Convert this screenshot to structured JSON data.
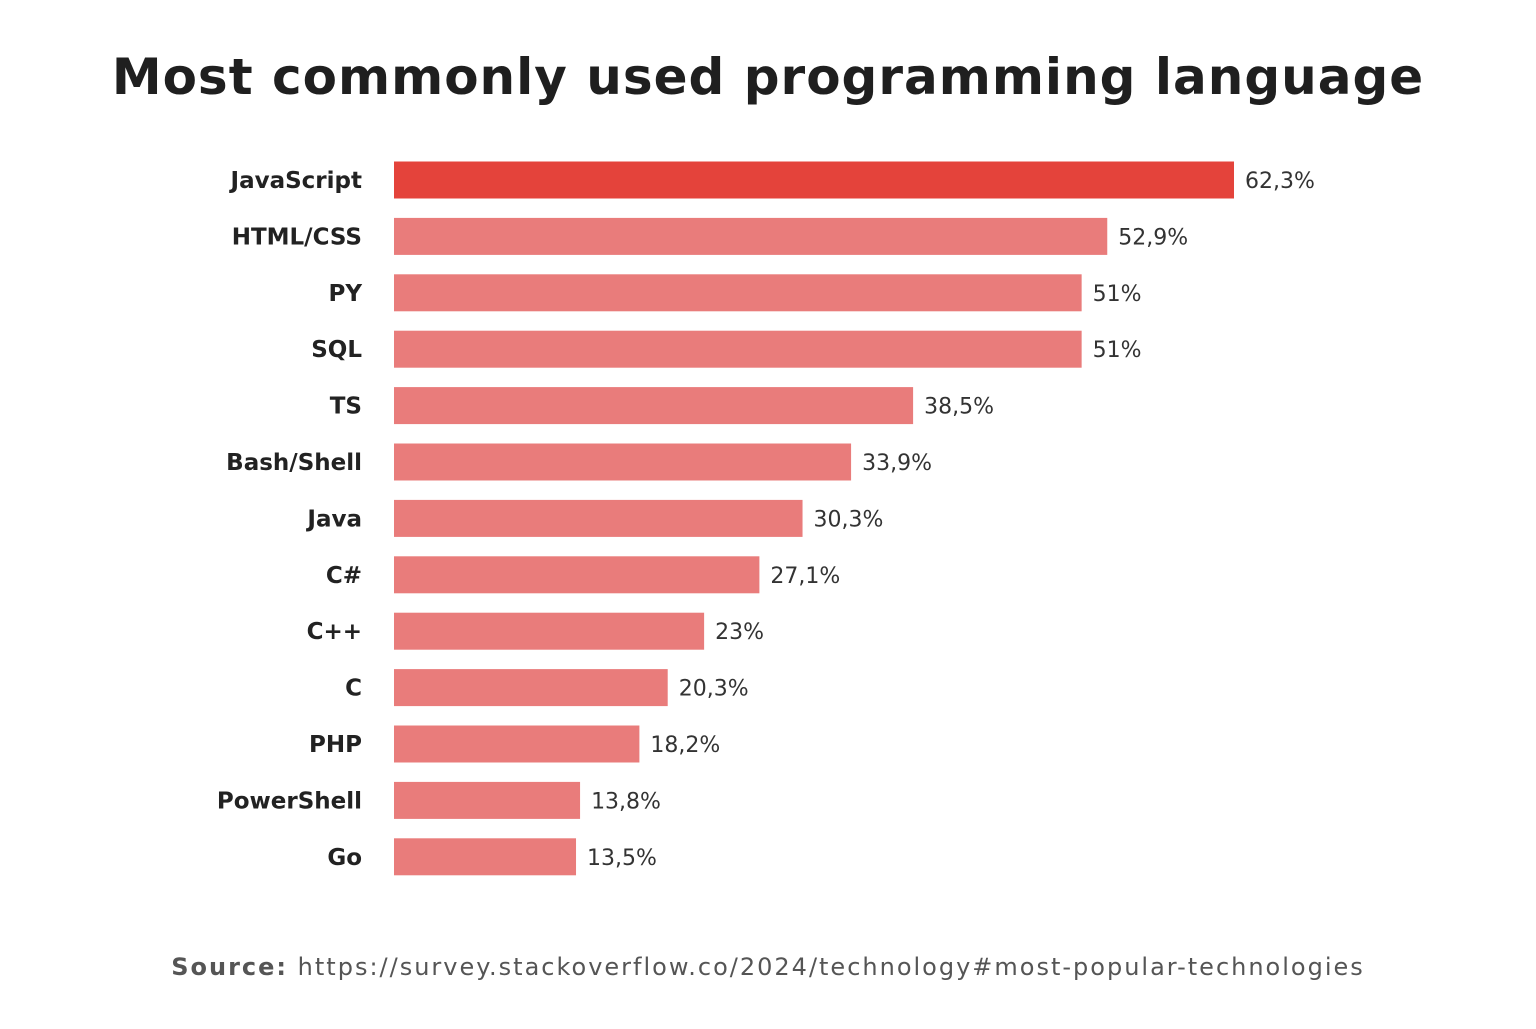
{
  "chart_data": {
    "type": "bar",
    "orientation": "horizontal",
    "title": "Most commonly used programming language",
    "categories": [
      "JavaScript",
      "HTML/CSS",
      "PY",
      "SQL",
      "TS",
      "Bash/Shell",
      "Java",
      "C#",
      "C++",
      "C",
      "PHP",
      "PowerShell",
      "Go"
    ],
    "values": [
      62.3,
      52.9,
      51,
      51,
      38.5,
      33.9,
      30.3,
      27.1,
      23,
      20.3,
      18.2,
      13.8,
      13.5
    ],
    "data_labels": [
      "62,3%",
      "52,9%",
      "51%",
      "51%",
      "38,5%",
      "33,9%",
      "30,3%",
      "27,1%",
      "23%",
      "20,3%",
      "18,2%",
      "13,8%",
      "13,5%"
    ],
    "xlim": [
      0,
      62.3
    ],
    "grid": false,
    "legend": "none",
    "colors": {
      "highlight": "#e4433b",
      "default": "#e97c7b"
    },
    "highlighted_category": "JavaScript"
  },
  "source": {
    "label": "Source:",
    "url": "https://survey.stackoverflow.co/2024/technology#most-popular-technologies"
  }
}
